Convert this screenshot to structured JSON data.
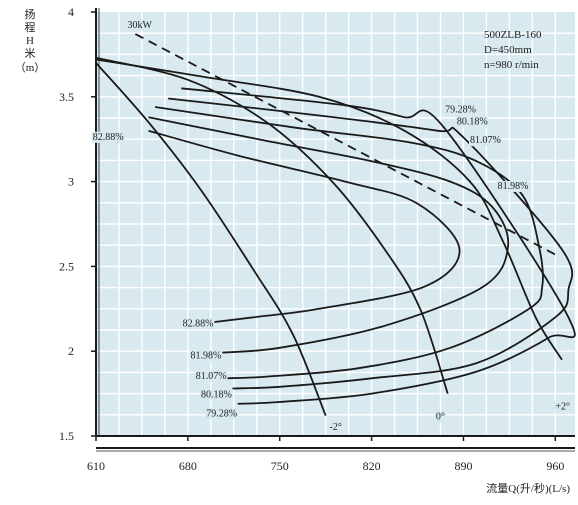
{
  "chart_data": {
    "type": "line",
    "ylabel_lines": [
      "扬",
      "程",
      "H",
      "米",
      "（m）"
    ],
    "xlabel": "流量Q(升/秒)(L/s)",
    "x_ticks": [
      "610",
      "680",
      "750",
      "820",
      "890",
      "960"
    ],
    "y_ticks": [
      "4",
      "3.5",
      "3",
      "2.5",
      "2",
      "1.5"
    ],
    "xlim": [
      610,
      975
    ],
    "ylim": [
      1.5,
      4.0
    ],
    "grid": true,
    "info_lines": [
      "500ZLB-160",
      "D=450mm",
      "n=980 r/min"
    ],
    "colors": {
      "background": "#d8eaf0",
      "line": "#1a1a1a",
      "grid": "#ffffff"
    },
    "blade_angle_curves": [
      {
        "label": "-2°",
        "points": [
          [
            610,
            3.7
          ],
          [
            650,
            3.35
          ],
          [
            690,
            2.95
          ],
          [
            730,
            2.48
          ],
          [
            760,
            2.1
          ],
          [
            785,
            1.62
          ]
        ]
      },
      {
        "label": "0°",
        "points": [
          [
            610,
            3.73
          ],
          [
            680,
            3.6
          ],
          [
            740,
            3.35
          ],
          [
            790,
            3.0
          ],
          [
            830,
            2.6
          ],
          [
            857,
            2.25
          ],
          [
            878,
            1.75
          ]
        ]
      },
      {
        "label": "+2°",
        "points": [
          [
            610,
            3.72
          ],
          [
            690,
            3.62
          ],
          [
            780,
            3.5
          ],
          [
            845,
            3.3
          ],
          [
            895,
            3.0
          ],
          [
            920,
            2.65
          ],
          [
            945,
            2.2
          ],
          [
            965,
            1.95
          ]
        ]
      }
    ],
    "efficiency_curves": [
      {
        "label": "82.88%",
        "points": [
          [
            650,
            3.3
          ],
          [
            720,
            3.15
          ],
          [
            800,
            3.0
          ],
          [
            855,
            2.87
          ],
          [
            887,
            2.6
          ],
          [
            860,
            2.38
          ],
          [
            780,
            2.25
          ],
          [
            730,
            2.2
          ],
          [
            698,
            2.17
          ]
        ]
      },
      {
        "label": "81.98%",
        "points": [
          [
            650,
            3.38
          ],
          [
            740,
            3.24
          ],
          [
            820,
            3.12
          ],
          [
            880,
            3.0
          ],
          [
            912,
            2.85
          ],
          [
            924,
            2.62
          ],
          [
            905,
            2.38
          ],
          [
            830,
            2.15
          ],
          [
            750,
            2.02
          ],
          [
            702,
            1.99
          ]
        ]
      },
      {
        "label": "81.07%",
        "points": [
          [
            655,
            3.44
          ],
          [
            760,
            3.32
          ],
          [
            850,
            3.23
          ],
          [
            900,
            3.12
          ],
          [
            935,
            2.92
          ],
          [
            948,
            2.6
          ],
          [
            950,
            2.38
          ],
          [
            940,
            2.25
          ],
          [
            880,
            2.02
          ],
          [
            810,
            1.9
          ],
          [
            740,
            1.85
          ],
          [
            708,
            1.84
          ]
        ]
      },
      {
        "label": "80.18%",
        "points": [
          [
            665,
            3.49
          ],
          [
            780,
            3.39
          ],
          [
            870,
            3.3
          ],
          [
            890,
            3.26
          ],
          [
            965,
            2.6
          ],
          [
            970,
            2.36
          ],
          [
            960,
            2.2
          ],
          [
            900,
            1.93
          ],
          [
            820,
            1.84
          ],
          [
            750,
            1.79
          ],
          [
            714,
            1.78
          ]
        ]
      },
      {
        "label": "79.28%",
        "points": [
          [
            675,
            3.55
          ],
          [
            800,
            3.45
          ],
          [
            845,
            3.38
          ],
          [
            875,
            3.32
          ],
          [
            970,
            2.2
          ],
          [
            955,
            2.08
          ],
          [
            900,
            1.88
          ],
          [
            820,
            1.75
          ],
          [
            748,
            1.7
          ],
          [
            718,
            1.69
          ]
        ]
      }
    ],
    "power_line": {
      "label": "30kW",
      "points": [
        [
          640,
          3.87
        ],
        [
          960,
          2.57
        ]
      ]
    },
    "efficiency_labels": [
      {
        "text": "82.88%",
        "at": [
          631,
          3.27
        ],
        "anchor": "end"
      },
      {
        "text": "79.28%",
        "at": [
          876,
          3.43
        ],
        "anchor": "start"
      },
      {
        "text": "80.18%",
        "at": [
          885,
          3.36
        ],
        "anchor": "start"
      },
      {
        "text": "81.07%",
        "at": [
          895,
          3.25
        ],
        "anchor": "start"
      },
      {
        "text": "81.98%",
        "at": [
          916,
          2.98
        ],
        "anchor": "start"
      },
      {
        "text": "82.88%",
        "at": [
          676,
          2.17
        ],
        "anchor": "start"
      },
      {
        "text": "81.98%",
        "at": [
          682,
          1.98
        ],
        "anchor": "start"
      },
      {
        "text": "81.07%",
        "at": [
          686,
          1.86
        ],
        "anchor": "start"
      },
      {
        "text": "80.18%",
        "at": [
          690,
          1.75
        ],
        "anchor": "start"
      },
      {
        "text": "79.28%",
        "at": [
          694,
          1.64
        ],
        "anchor": "start"
      }
    ],
    "angle_labels": [
      {
        "text": "-2°",
        "at": [
          788,
          1.56
        ],
        "anchor": "start"
      },
      {
        "text": "0°",
        "at": [
          869,
          1.62
        ],
        "anchor": "start"
      },
      {
        "text": "+2°",
        "at": [
          960,
          1.68
        ],
        "anchor": "start"
      }
    ]
  }
}
